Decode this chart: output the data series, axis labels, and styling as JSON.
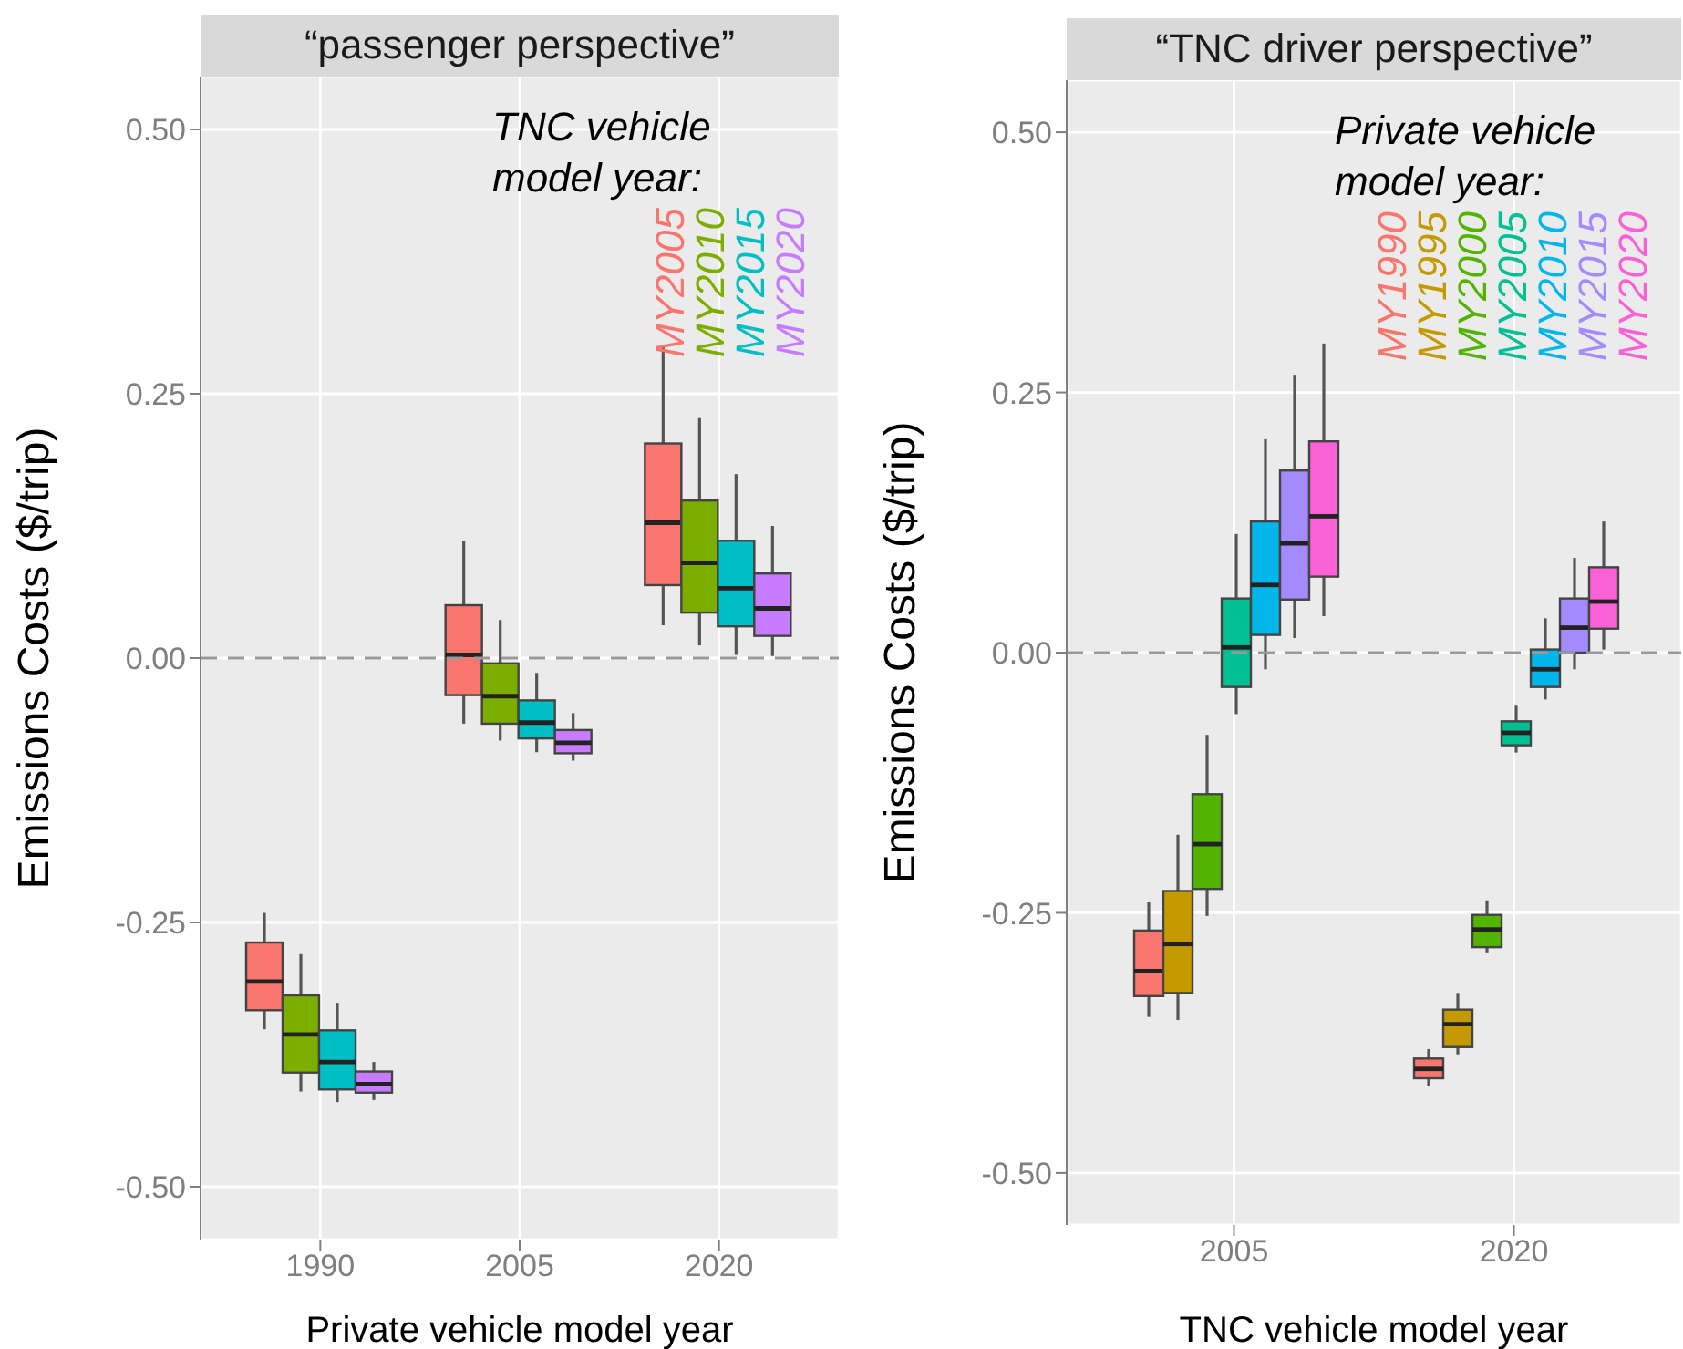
{
  "chart_data": [
    {
      "type": "box",
      "title": "“passenger perspective”",
      "xlabel": "Private vehicle model year",
      "ylabel": "Emissions Costs  ($/trip)",
      "legend_title": "TNC vehicle model year:",
      "legend": "top right",
      "grid": true,
      "categories": [
        "1990",
        "2005",
        "2020"
      ],
      "ylim": [
        -0.55,
        0.55
      ],
      "yticks": [
        {
          "value": -0.5,
          "label": "-0.50"
        },
        {
          "value": -0.25,
          "label": "-0.25"
        },
        {
          "value": 0,
          "label": "0.00"
        },
        {
          "value": 0.25,
          "label": "0.25"
        },
        {
          "value": 0.5,
          "label": "0.50"
        }
      ],
      "ref_lines": [
        {
          "axis": "y",
          "value": 0,
          "line_style": "dashed",
          "color": "#999999"
        }
      ],
      "series": [
        {
          "name": "MY2005",
          "color": "#f8766d",
          "boxes": [
            {
              "low": -0.351,
              "q1": -0.333,
              "median": -0.306,
              "q3": -0.269,
              "high": -0.241
            },
            {
              "low": -0.062,
              "q1": -0.035,
              "median": 0.003,
              "q3": 0.05,
              "high": 0.111
            },
            {
              "low": 0.031,
              "q1": 0.069,
              "median": 0.128,
              "q3": 0.203,
              "high": 0.295
            }
          ]
        },
        {
          "name": "MY2010",
          "color": "#7cae00",
          "boxes": [
            {
              "low": -0.41,
              "q1": -0.392,
              "median": -0.356,
              "q3": -0.319,
              "high": -0.28
            },
            {
              "low": -0.078,
              "q1": -0.062,
              "median": -0.036,
              "q3": -0.005,
              "high": 0.036
            },
            {
              "low": 0.012,
              "q1": 0.043,
              "median": 0.09,
              "q3": 0.149,
              "high": 0.227
            }
          ]
        },
        {
          "name": "MY2015",
          "color": "#00bfc4",
          "boxes": [
            {
              "low": -0.42,
              "q1": -0.408,
              "median": -0.382,
              "q3": -0.352,
              "high": -0.326
            },
            {
              "low": -0.089,
              "q1": -0.076,
              "median": -0.061,
              "q3": -0.04,
              "high": -0.014
            },
            {
              "low": 0.003,
              "q1": 0.03,
              "median": 0.066,
              "q3": 0.111,
              "high": 0.174
            }
          ]
        },
        {
          "name": "MY2020",
          "color": "#c77cff",
          "boxes": [
            {
              "low": -0.418,
              "q1": -0.411,
              "median": -0.403,
              "q3": -0.391,
              "high": -0.382
            },
            {
              "low": -0.097,
              "q1": -0.09,
              "median": -0.08,
              "q3": -0.068,
              "high": -0.052
            },
            {
              "low": 0.002,
              "q1": 0.021,
              "median": 0.047,
              "q3": 0.08,
              "high": 0.125
            }
          ]
        }
      ]
    },
    {
      "type": "box",
      "title": "“TNC driver perspective”",
      "xlabel": "TNC vehicle model year",
      "ylabel": "Emissions Costs  ($/trip)",
      "legend_title": "Private vehicle model year:",
      "legend": "top right",
      "grid": true,
      "categories": [
        "2005",
        "2020"
      ],
      "ylim": [
        -0.55,
        0.55
      ],
      "yticks": [
        {
          "value": -0.5,
          "label": "-0.50"
        },
        {
          "value": -0.25,
          "label": "-0.25"
        },
        {
          "value": 0,
          "label": "0.00"
        },
        {
          "value": 0.25,
          "label": "0.25"
        },
        {
          "value": 0.5,
          "label": "0.50"
        }
      ],
      "ref_lines": [
        {
          "axis": "y",
          "value": 0,
          "line_style": "dashed",
          "color": "#999999"
        }
      ],
      "series": [
        {
          "name": "MY1990",
          "color": "#f8766d",
          "boxes": [
            {
              "low": -0.35,
              "q1": -0.33,
              "median": -0.306,
              "q3": -0.267,
              "high": -0.24
            },
            {
              "low": -0.416,
              "q1": -0.409,
              "median": -0.4,
              "q3": -0.39,
              "high": -0.381
            }
          ]
        },
        {
          "name": "MY1995",
          "color": "#c49a00",
          "boxes": [
            {
              "low": -0.353,
              "q1": -0.327,
              "median": -0.28,
              "q3": -0.229,
              "high": -0.175
            },
            {
              "low": -0.386,
              "q1": -0.379,
              "median": -0.357,
              "q3": -0.343,
              "high": -0.327
            }
          ]
        },
        {
          "name": "MY2000",
          "color": "#53b400",
          "boxes": [
            {
              "low": -0.253,
              "q1": -0.227,
              "median": -0.184,
              "q3": -0.136,
              "high": -0.079
            },
            {
              "low": -0.288,
              "q1": -0.283,
              "median": -0.266,
              "q3": -0.252,
              "high": -0.238
            }
          ]
        },
        {
          "name": "MY2005",
          "color": "#00c094",
          "boxes": [
            {
              "low": -0.059,
              "q1": -0.033,
              "median": 0.005,
              "q3": 0.052,
              "high": 0.114
            },
            {
              "low": -0.096,
              "q1": -0.089,
              "median": -0.077,
              "q3": -0.066,
              "high": -0.051
            }
          ]
        },
        {
          "name": "MY2010",
          "color": "#00b6eb",
          "boxes": [
            {
              "low": -0.016,
              "q1": 0.017,
              "median": 0.065,
              "q3": 0.126,
              "high": 0.205
            },
            {
              "low": -0.045,
              "q1": -0.033,
              "median": -0.016,
              "q3": 0.003,
              "high": 0.033
            }
          ]
        },
        {
          "name": "MY2015",
          "color": "#a58aff",
          "boxes": [
            {
              "low": 0.014,
              "q1": 0.051,
              "median": 0.105,
              "q3": 0.175,
              "high": 0.267
            },
            {
              "low": -0.016,
              "q1": 0.0,
              "median": 0.024,
              "q3": 0.052,
              "high": 0.091
            }
          ]
        },
        {
          "name": "MY2020",
          "color": "#fb61d7",
          "boxes": [
            {
              "low": 0.035,
              "q1": 0.073,
              "median": 0.131,
              "q3": 0.203,
              "high": 0.297
            },
            {
              "low": 0.003,
              "q1": 0.023,
              "median": 0.049,
              "q3": 0.082,
              "high": 0.126
            }
          ]
        }
      ]
    }
  ]
}
